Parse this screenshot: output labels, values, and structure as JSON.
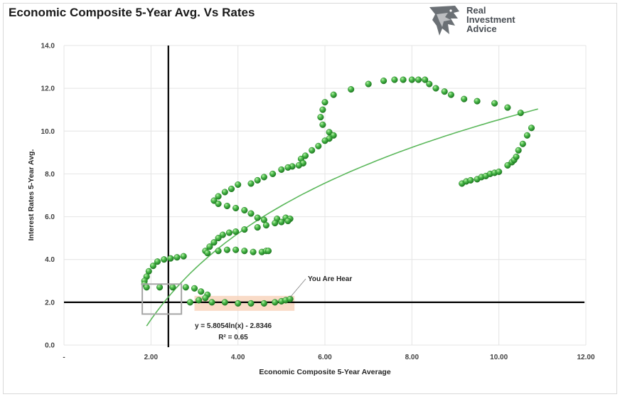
{
  "title": "Economic Composite 5-Year Avg. Vs Rates",
  "logo": {
    "line1": "Real",
    "line2": "Investment",
    "line3": "Advice"
  },
  "colors": {
    "point": "#3fae3f",
    "point_edge": "#1f7a1f",
    "trend": "#5cb85c",
    "ref_lines": "#000000",
    "highlight": "#f8d5bd",
    "box": "#a6a6a6"
  },
  "chart_data": {
    "type": "scatter",
    "title": "Economic Composite 5-Year Avg. Vs Rates",
    "xlabel": "Economic Composite 5-Year Average",
    "ylabel": "Interest Rates 5-Year Avg.",
    "xlim": [
      0,
      12
    ],
    "ylim": [
      0,
      14
    ],
    "x_ticks": [
      {
        "value": 0,
        "label": "-"
      },
      {
        "value": 2,
        "label": "2.00"
      },
      {
        "value": 4,
        "label": "4.00"
      },
      {
        "value": 6,
        "label": "6.00"
      },
      {
        "value": 8,
        "label": "8.00"
      },
      {
        "value": 10,
        "label": "10.00"
      },
      {
        "value": 12,
        "label": "12.00"
      }
    ],
    "y_ticks": [
      {
        "value": 0,
        "label": "0.0"
      },
      {
        "value": 2,
        "label": "2.0"
      },
      {
        "value": 4,
        "label": "4.0"
      },
      {
        "value": 6,
        "label": "6.0"
      },
      {
        "value": 8,
        "label": "8.0"
      },
      {
        "value": 10,
        "label": "10.0"
      },
      {
        "value": 12,
        "label": "12.0"
      },
      {
        "value": 14,
        "label": "14.0"
      }
    ],
    "grid": true,
    "reference_lines": {
      "vertical_x": 2.4,
      "horizontal_y": 2.0
    },
    "trendline": {
      "equation": "y = 5.8054ln(x) - 2.8346",
      "r_squared": "R² = 0.65",
      "a": 5.8054,
      "b": -2.8346,
      "x_range": [
        1.9,
        10.9
      ]
    },
    "annotation": "You Are Hear",
    "highlight_range": {
      "x": [
        3.0,
        5.3
      ],
      "y": [
        1.6,
        2.3
      ]
    },
    "box_range": {
      "x": [
        1.8,
        2.7
      ],
      "y": [
        1.45,
        2.85
      ]
    },
    "points": [
      [
        9.15,
        7.55
      ],
      [
        9.25,
        7.65
      ],
      [
        9.35,
        7.7
      ],
      [
        9.5,
        7.75
      ],
      [
        9.6,
        7.85
      ],
      [
        9.7,
        7.9
      ],
      [
        9.8,
        8.0
      ],
      [
        9.9,
        8.05
      ],
      [
        10.0,
        8.1
      ],
      [
        10.2,
        8.4
      ],
      [
        10.3,
        8.55
      ],
      [
        10.35,
        8.65
      ],
      [
        10.4,
        8.8
      ],
      [
        10.45,
        9.1
      ],
      [
        10.55,
        9.4
      ],
      [
        10.65,
        9.8
      ],
      [
        10.75,
        10.15
      ],
      [
        10.5,
        10.85
      ],
      [
        10.2,
        11.1
      ],
      [
        9.9,
        11.3
      ],
      [
        9.5,
        11.4
      ],
      [
        9.2,
        11.5
      ],
      [
        8.9,
        11.7
      ],
      [
        8.75,
        11.85
      ],
      [
        8.55,
        12.0
      ],
      [
        8.4,
        12.2
      ],
      [
        8.3,
        12.4
      ],
      [
        8.15,
        12.4
      ],
      [
        8.0,
        12.4
      ],
      [
        7.8,
        12.4
      ],
      [
        7.6,
        12.4
      ],
      [
        7.35,
        12.35
      ],
      [
        7.0,
        12.2
      ],
      [
        6.6,
        11.95
      ],
      [
        6.2,
        11.7
      ],
      [
        6.0,
        11.35
      ],
      [
        5.95,
        11.0
      ],
      [
        5.9,
        10.65
      ],
      [
        5.95,
        10.3
      ],
      [
        6.1,
        9.95
      ],
      [
        6.2,
        9.8
      ],
      [
        6.1,
        9.65
      ],
      [
        6.0,
        9.55
      ],
      [
        5.85,
        9.3
      ],
      [
        5.7,
        9.1
      ],
      [
        5.55,
        8.85
      ],
      [
        5.45,
        8.7
      ],
      [
        5.5,
        8.5
      ],
      [
        5.4,
        8.4
      ],
      [
        5.25,
        8.35
      ],
      [
        5.15,
        8.3
      ],
      [
        5.0,
        8.2
      ],
      [
        4.8,
        8.0
      ],
      [
        4.6,
        7.85
      ],
      [
        4.45,
        7.7
      ],
      [
        4.3,
        7.55
      ],
      [
        4.0,
        7.5
      ],
      [
        3.85,
        7.3
      ],
      [
        3.7,
        7.15
      ],
      [
        3.55,
        6.95
      ],
      [
        3.45,
        6.75
      ],
      [
        3.55,
        6.6
      ],
      [
        3.75,
        6.5
      ],
      [
        3.95,
        6.4
      ],
      [
        4.15,
        6.3
      ],
      [
        4.3,
        6.15
      ],
      [
        4.45,
        5.95
      ],
      [
        4.6,
        5.85
      ],
      [
        4.9,
        5.9
      ],
      [
        5.1,
        5.95
      ],
      [
        5.2,
        5.9
      ],
      [
        5.15,
        5.8
      ],
      [
        5.0,
        5.75
      ],
      [
        4.85,
        5.7
      ],
      [
        4.65,
        5.6
      ],
      [
        4.45,
        5.5
      ],
      [
        4.15,
        5.4
      ],
      [
        3.95,
        5.3
      ],
      [
        3.8,
        5.25
      ],
      [
        3.65,
        5.15
      ],
      [
        3.55,
        5.0
      ],
      [
        3.45,
        4.8
      ],
      [
        3.35,
        4.6
      ],
      [
        3.25,
        4.4
      ],
      [
        3.3,
        4.3
      ],
      [
        3.55,
        4.4
      ],
      [
        3.75,
        4.45
      ],
      [
        3.95,
        4.45
      ],
      [
        4.15,
        4.4
      ],
      [
        4.35,
        4.35
      ],
      [
        4.55,
        4.35
      ],
      [
        4.65,
        4.4
      ],
      [
        4.7,
        4.4
      ],
      [
        2.75,
        4.15
      ],
      [
        2.6,
        4.1
      ],
      [
        2.45,
        4.05
      ],
      [
        2.3,
        4.0
      ],
      [
        2.15,
        3.9
      ],
      [
        2.05,
        3.7
      ],
      [
        1.95,
        3.45
      ],
      [
        1.9,
        3.2
      ],
      [
        1.85,
        3.0
      ],
      [
        1.85,
        2.85
      ],
      [
        1.9,
        2.7
      ],
      [
        2.2,
        2.7
      ],
      [
        2.5,
        2.7
      ],
      [
        2.8,
        2.7
      ],
      [
        3.0,
        2.65
      ],
      [
        3.15,
        2.5
      ],
      [
        3.3,
        2.35
      ],
      [
        3.25,
        2.2
      ],
      [
        3.1,
        2.1
      ],
      [
        2.9,
        2.0
      ],
      [
        3.4,
        2.0
      ],
      [
        3.7,
        2.0
      ],
      [
        4.0,
        1.95
      ],
      [
        4.3,
        1.95
      ],
      [
        4.6,
        1.95
      ],
      [
        4.85,
        2.0
      ],
      [
        5.0,
        2.05
      ],
      [
        5.1,
        2.1
      ],
      [
        5.2,
        2.15
      ]
    ]
  }
}
